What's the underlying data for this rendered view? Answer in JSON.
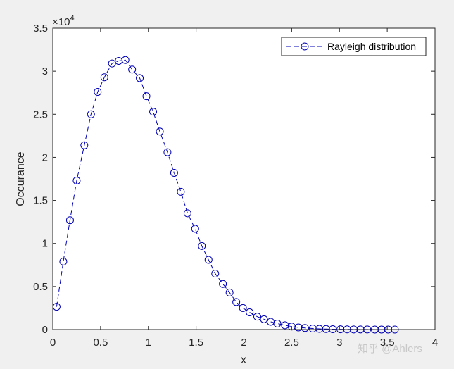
{
  "window": {
    "background": "#f0f0f0"
  },
  "watermark": "知乎 @Ahlers",
  "chart_data": {
    "type": "line",
    "title": "",
    "xlabel": "x",
    "ylabel": "Occurance",
    "xlim": [
      0,
      4
    ],
    "ylim": [
      0,
      35000
    ],
    "x_ticks": [
      0,
      0.5,
      1,
      1.5,
      2,
      2.5,
      3,
      3.5,
      4
    ],
    "x_tick_labels": [
      "0",
      "0.5",
      "1",
      "1.5",
      "2",
      "2.5",
      "3",
      "3.5",
      "4"
    ],
    "y_ticks": [
      0,
      5000,
      10000,
      15000,
      20000,
      25000,
      30000,
      35000
    ],
    "y_tick_labels": [
      "0",
      "0.5",
      "1",
      "1.5",
      "2",
      "2.5",
      "3",
      "3.5"
    ],
    "y_exponent_label": "×10",
    "y_exponent_power": "4",
    "grid": false,
    "box": true,
    "legend": {
      "position": "top-right",
      "entries": [
        "Rayleigh distribution"
      ]
    },
    "series": [
      {
        "name": "Rayleigh distribution",
        "color": "#0000b4",
        "line_style": "dashed",
        "marker": "circle-open",
        "x": [
          0.04,
          0.11,
          0.18,
          0.25,
          0.33,
          0.4,
          0.47,
          0.54,
          0.62,
          0.69,
          0.76,
          0.83,
          0.91,
          0.98,
          1.05,
          1.12,
          1.2,
          1.27,
          1.34,
          1.41,
          1.49,
          1.56,
          1.63,
          1.7,
          1.78,
          1.85,
          1.92,
          1.99,
          2.06,
          2.14,
          2.21,
          2.28,
          2.35,
          2.43,
          2.5,
          2.57,
          2.64,
          2.72,
          2.79,
          2.86,
          2.93,
          3.01,
          3.08,
          3.15,
          3.22,
          3.29,
          3.37,
          3.44,
          3.51,
          3.58
        ],
        "y": [
          2650,
          7900,
          12700,
          17300,
          21400,
          25000,
          27600,
          29300,
          30900,
          31200,
          31300,
          30200,
          29200,
          27100,
          25300,
          23000,
          20600,
          18200,
          16000,
          13500,
          11700,
          9700,
          8100,
          6500,
          5300,
          4300,
          3200,
          2500,
          2000,
          1500,
          1200,
          900,
          700,
          500,
          350,
          250,
          180,
          120,
          80,
          60,
          40,
          30,
          20,
          15,
          10,
          8,
          5,
          4,
          3,
          2
        ]
      }
    ]
  }
}
